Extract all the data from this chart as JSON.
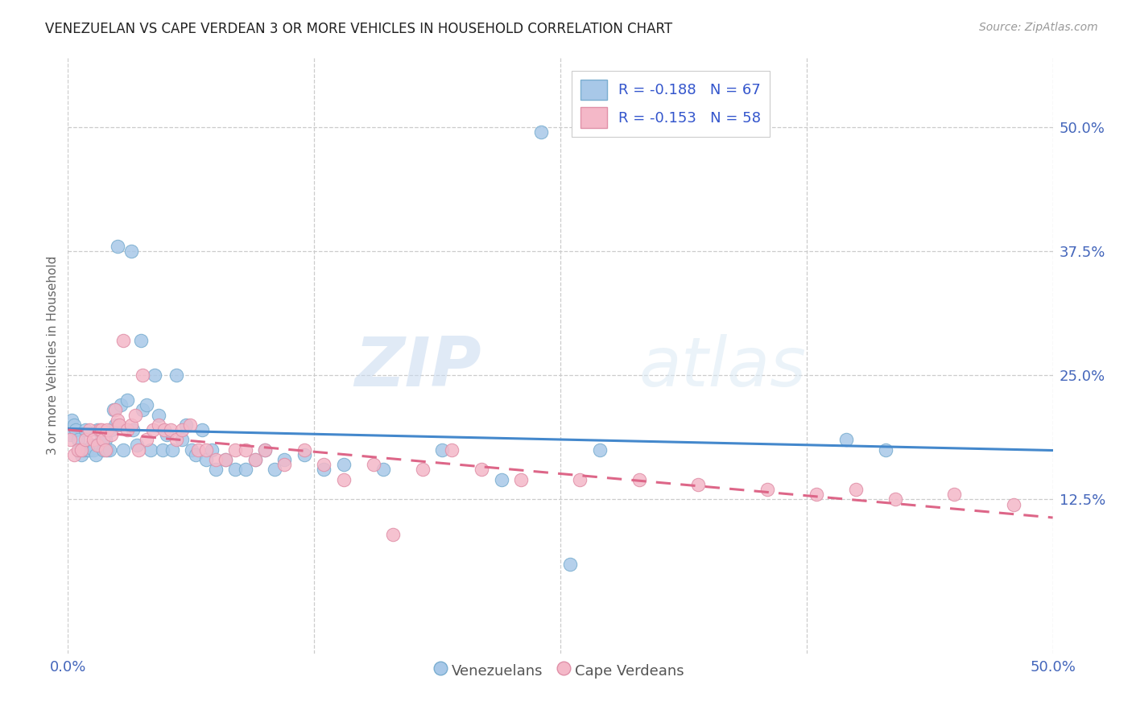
{
  "title": "VENEZUELAN VS CAPE VERDEAN 3 OR MORE VEHICLES IN HOUSEHOLD CORRELATION CHART",
  "source": "Source: ZipAtlas.com",
  "ylabel": "3 or more Vehicles in Household",
  "ytick_values": [
    0.125,
    0.25,
    0.375,
    0.5
  ],
  "ytick_labels": [
    "12.5%",
    "25.0%",
    "37.5%",
    "50.0%"
  ],
  "xlim": [
    0.0,
    0.5
  ],
  "ylim": [
    -0.03,
    0.57
  ],
  "legend_label_blue": "R = -0.188   N = 67",
  "legend_label_pink": "R = -0.153   N = 58",
  "legend_series1": "Venezuelans",
  "legend_series2": "Cape Verdeans",
  "blue_fill": "#a8c8e8",
  "blue_edge": "#7aaed0",
  "pink_fill": "#f4b8c8",
  "pink_edge": "#e090a8",
  "blue_line": "#4488cc",
  "pink_line": "#dd6688",
  "watermark_zip": "ZIP",
  "watermark_atlas": "atlas",
  "venezuelan_x": [
    0.001,
    0.002,
    0.003,
    0.004,
    0.005,
    0.006,
    0.007,
    0.008,
    0.009,
    0.01,
    0.011,
    0.012,
    0.013,
    0.014,
    0.015,
    0.016,
    0.017,
    0.018,
    0.019,
    0.02,
    0.021,
    0.022,
    0.023,
    0.024,
    0.025,
    0.027,
    0.028,
    0.03,
    0.032,
    0.033,
    0.035,
    0.037,
    0.038,
    0.04,
    0.042,
    0.044,
    0.046,
    0.048,
    0.05,
    0.053,
    0.055,
    0.058,
    0.06,
    0.063,
    0.065,
    0.068,
    0.07,
    0.073,
    0.075,
    0.08,
    0.085,
    0.09,
    0.095,
    0.1,
    0.105,
    0.11,
    0.12,
    0.13,
    0.14,
    0.16,
    0.19,
    0.22,
    0.255,
    0.395,
    0.415,
    0.24,
    0.27
  ],
  "venezuelan_y": [
    0.19,
    0.205,
    0.2,
    0.195,
    0.185,
    0.175,
    0.17,
    0.175,
    0.195,
    0.175,
    0.175,
    0.18,
    0.175,
    0.17,
    0.195,
    0.18,
    0.185,
    0.175,
    0.185,
    0.175,
    0.175,
    0.195,
    0.215,
    0.2,
    0.38,
    0.22,
    0.175,
    0.225,
    0.375,
    0.195,
    0.18,
    0.285,
    0.215,
    0.22,
    0.175,
    0.25,
    0.21,
    0.175,
    0.19,
    0.175,
    0.25,
    0.185,
    0.2,
    0.175,
    0.17,
    0.195,
    0.165,
    0.175,
    0.155,
    0.165,
    0.155,
    0.155,
    0.165,
    0.175,
    0.155,
    0.165,
    0.17,
    0.155,
    0.16,
    0.155,
    0.175,
    0.145,
    0.06,
    0.185,
    0.175,
    0.495,
    0.175
  ],
  "cape_verdean_x": [
    0.001,
    0.003,
    0.005,
    0.007,
    0.009,
    0.011,
    0.013,
    0.015,
    0.016,
    0.017,
    0.018,
    0.019,
    0.02,
    0.022,
    0.024,
    0.025,
    0.026,
    0.028,
    0.03,
    0.032,
    0.034,
    0.036,
    0.038,
    0.04,
    0.043,
    0.046,
    0.049,
    0.052,
    0.055,
    0.058,
    0.062,
    0.066,
    0.07,
    0.075,
    0.08,
    0.085,
    0.09,
    0.095,
    0.1,
    0.11,
    0.12,
    0.13,
    0.14,
    0.155,
    0.165,
    0.18,
    0.195,
    0.21,
    0.23,
    0.26,
    0.29,
    0.32,
    0.355,
    0.38,
    0.4,
    0.42,
    0.45,
    0.48
  ],
  "cape_verdean_y": [
    0.185,
    0.17,
    0.175,
    0.175,
    0.185,
    0.195,
    0.185,
    0.18,
    0.195,
    0.195,
    0.185,
    0.175,
    0.195,
    0.19,
    0.215,
    0.205,
    0.2,
    0.285,
    0.195,
    0.2,
    0.21,
    0.175,
    0.25,
    0.185,
    0.195,
    0.2,
    0.195,
    0.195,
    0.185,
    0.195,
    0.2,
    0.175,
    0.175,
    0.165,
    0.165,
    0.175,
    0.175,
    0.165,
    0.175,
    0.16,
    0.175,
    0.16,
    0.145,
    0.16,
    0.09,
    0.155,
    0.175,
    0.155,
    0.145,
    0.145,
    0.145,
    0.14,
    0.135,
    0.13,
    0.135,
    0.125,
    0.13,
    0.12
  ]
}
